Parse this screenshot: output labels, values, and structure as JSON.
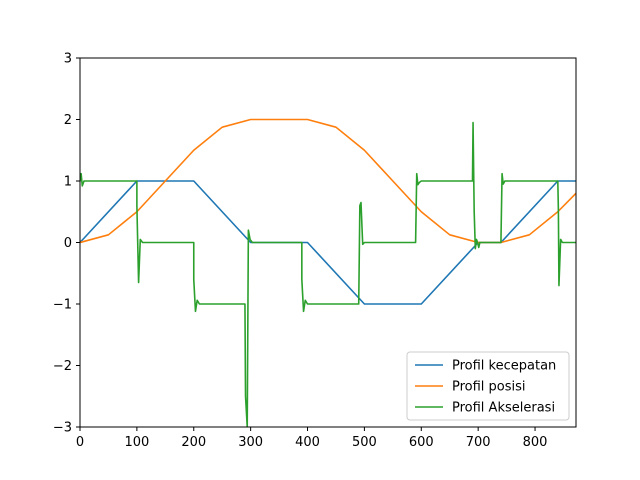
{
  "chart_data": {
    "type": "line",
    "title": "",
    "xlabel": "",
    "ylabel": "",
    "xlim": [
      0,
      872
    ],
    "ylim": [
      -3,
      3
    ],
    "xticks": [
      0,
      100,
      200,
      300,
      400,
      500,
      600,
      700,
      800
    ],
    "yticks": [
      -3,
      -2,
      -1,
      0,
      1,
      2,
      3
    ],
    "grid": false,
    "legend_position": "lower-right",
    "series": [
      {
        "name": "Profil kecepatan",
        "color": "#1f77b4",
        "x": [
          0,
          100,
          200,
          300,
          400,
          500,
          600,
          700,
          740,
          840,
          872
        ],
        "y": [
          0,
          1,
          1,
          0,
          0,
          -1,
          -1,
          0,
          0,
          1,
          1
        ]
      },
      {
        "name": "Profil posisi",
        "color": "#ff7f0e",
        "x": [
          0,
          50,
          100,
          150,
          200,
          250,
          300,
          350,
          400,
          450,
          500,
          550,
          600,
          650,
          700,
          740,
          790,
          840,
          872
        ],
        "y": [
          0,
          0.125,
          0.5,
          1.0,
          1.5,
          1.875,
          2.0,
          2.0,
          2.0,
          1.875,
          1.5,
          1.0,
          0.5,
          0.125,
          0,
          0,
          0.125,
          0.5,
          0.8
        ]
      },
      {
        "name": "Profil Akselerasi",
        "color": "#2ca02c",
        "x": [
          0,
          2,
          4,
          7,
          10,
          100,
          100,
          103,
          106,
          110,
          200,
          200,
          203,
          206,
          210,
          290,
          291,
          294,
          296,
          299,
          303,
          390,
          390,
          393,
          396,
          400,
          490,
          492,
          494,
          497,
          500,
          590,
          592,
          594,
          597,
          600,
          690,
          691,
          693,
          695,
          697,
          699,
          701,
          703,
          740,
          742,
          744,
          747,
          750,
          840,
          841,
          842,
          845,
          848,
          872
        ],
        "y": [
          1,
          1.12,
          0.92,
          1.0,
          1,
          1,
          0.6,
          -0.65,
          0.05,
          0,
          0,
          -0.6,
          -1.12,
          -0.94,
          -1,
          -1,
          -2.5,
          -3.0,
          0.2,
          0.05,
          0,
          0,
          -0.6,
          -1.12,
          -0.94,
          -1,
          -1,
          0.6,
          0.65,
          -0.03,
          0,
          0,
          1.12,
          0.94,
          0.98,
          1,
          1,
          1.95,
          0.5,
          -0.1,
          0.05,
          0,
          -0.08,
          0,
          0,
          1.12,
          0.95,
          1.0,
          1,
          1,
          0.55,
          -0.7,
          0.05,
          0,
          0
        ]
      }
    ]
  }
}
